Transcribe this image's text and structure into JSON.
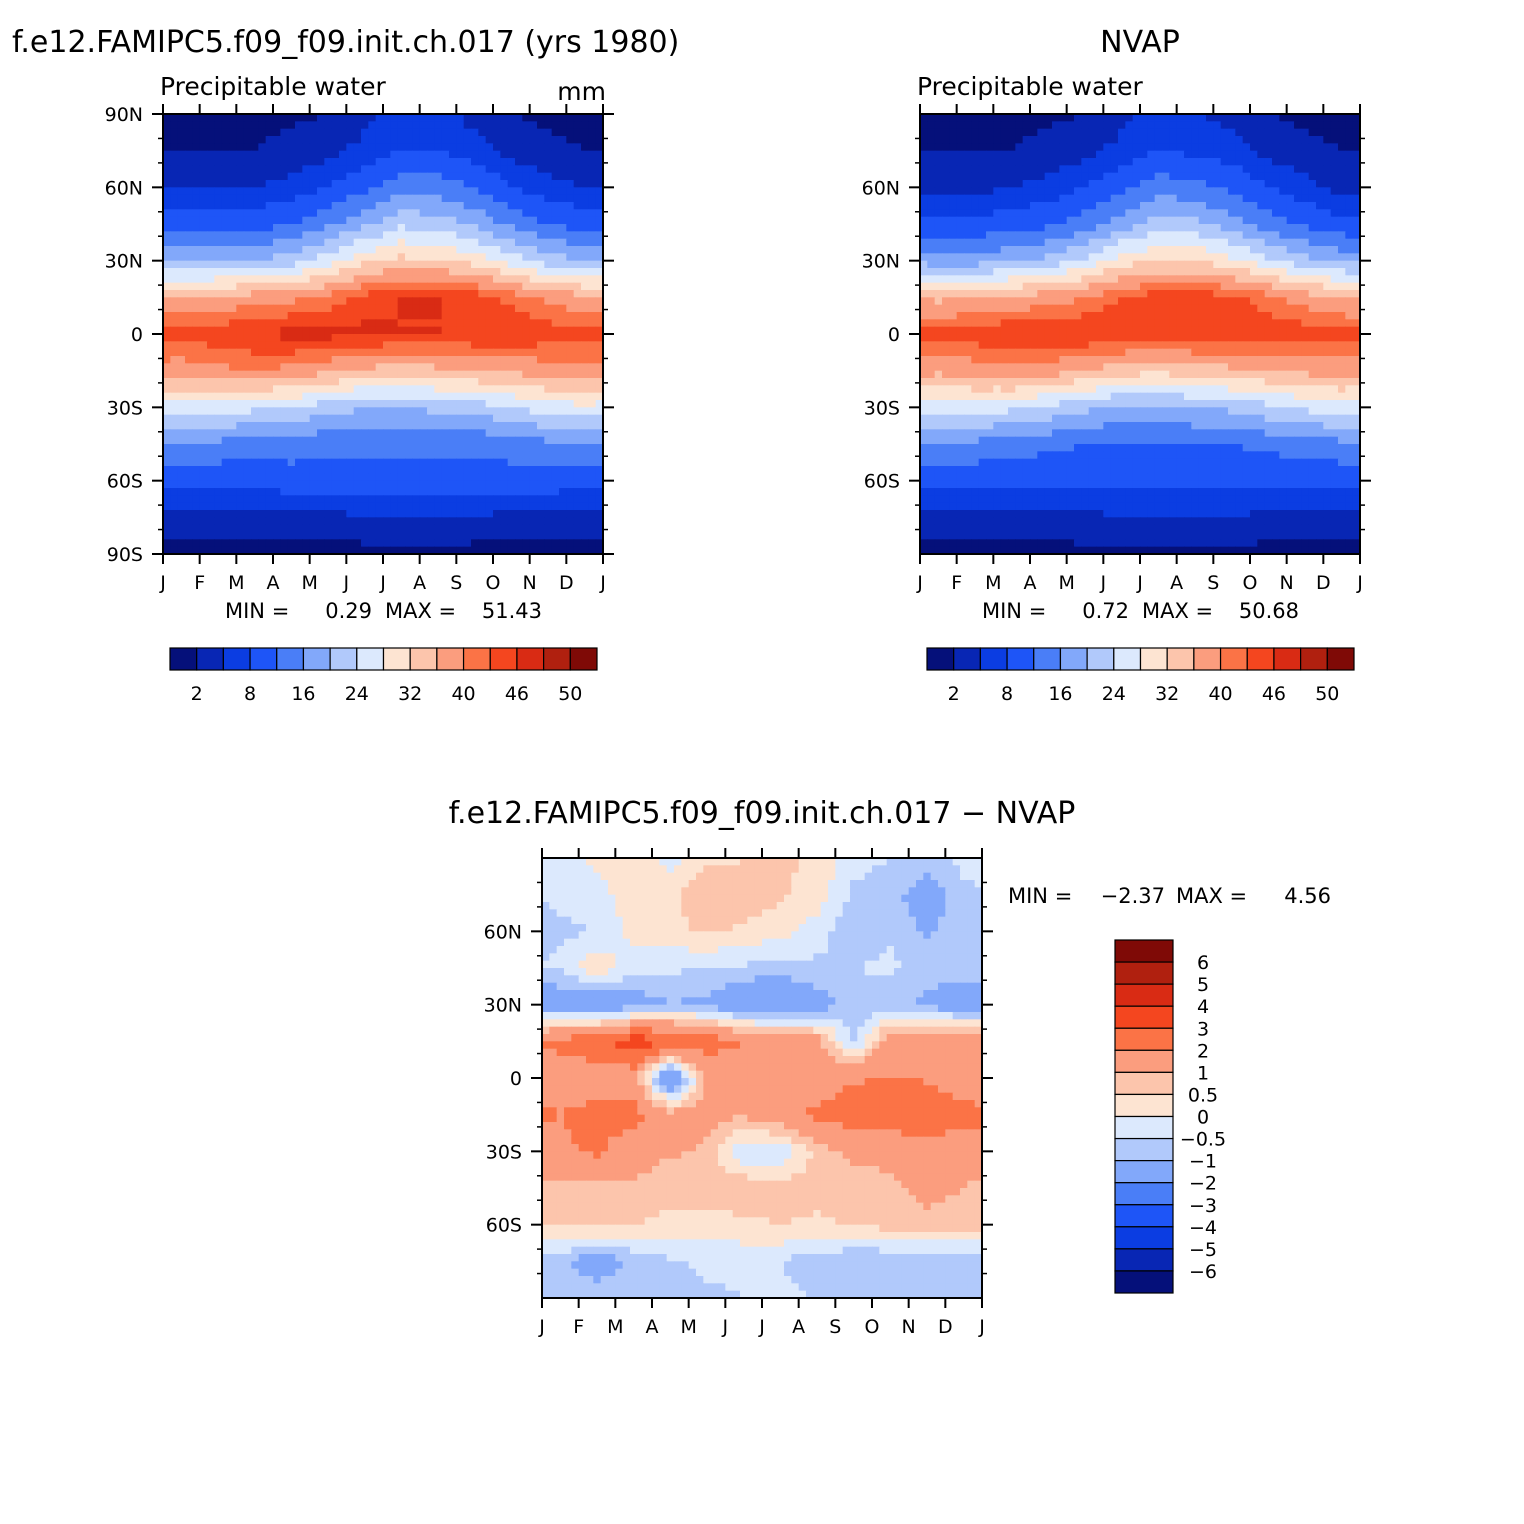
{
  "chart_data": [
    {
      "type": "heatmap",
      "title": "f.e12.FAMIPC5.f09_f09.init.ch.017 (yrs 1980)",
      "subtitle": "Precipitable water",
      "units": "mm",
      "x_tick_labels": [
        "J",
        "F",
        "M",
        "A",
        "M",
        "J",
        "J",
        "A",
        "S",
        "O",
        "N",
        "D",
        "J"
      ],
      "y_tick_labels": [
        "90N",
        "60N",
        "30N",
        "0",
        "30S",
        "60S",
        "90S"
      ],
      "ylim": [
        -90,
        90
      ],
      "stats": {
        "min_label": "MIN =",
        "min": "0.29",
        "max_label": "MAX =",
        "max": "51.43"
      },
      "colorbar_labels": [
        "2",
        "8",
        "16",
        "24",
        "32",
        "40",
        "46",
        "50"
      ],
      "months": [
        1,
        2,
        3,
        4,
        5,
        6,
        7,
        8,
        9,
        10,
        11,
        12
      ],
      "lat": [
        -90,
        -75,
        -60,
        -45,
        -30,
        -15,
        0,
        15,
        30,
        45,
        60,
        75,
        90
      ],
      "values": [
        [
          0.5,
          0.5,
          0.6,
          0.6,
          0.7,
          0.8,
          0.8,
          0.8,
          0.7,
          0.6,
          0.5,
          0.5
        ],
        [
          4,
          4,
          4,
          4,
          4,
          5,
          5,
          5,
          5,
          4,
          4,
          4
        ],
        [
          9,
          9,
          9,
          10,
          10,
          10,
          10,
          10,
          10,
          10,
          10,
          9
        ],
        [
          15,
          15,
          14,
          14,
          13,
          13,
          13,
          13,
          13,
          14,
          15,
          15
        ],
        [
          26,
          26,
          25,
          24,
          22,
          20,
          20,
          21,
          22,
          24,
          26,
          27
        ],
        [
          38,
          39,
          40,
          39,
          37,
          35,
          34,
          35,
          36,
          37,
          38,
          39
        ],
        [
          44,
          45,
          46,
          47,
          47,
          47,
          46,
          46,
          46,
          46,
          45,
          44
        ],
        [
          36,
          37,
          38,
          39,
          41,
          44,
          46,
          46,
          45,
          42,
          39,
          37
        ],
        [
          19,
          19,
          20,
          22,
          26,
          31,
          33,
          33,
          30,
          26,
          22,
          20
        ],
        [
          10,
          10,
          10,
          12,
          15,
          19,
          23,
          22,
          19,
          15,
          12,
          10
        ],
        [
          5,
          5,
          5,
          6,
          8,
          11,
          14,
          14,
          12,
          8,
          6,
          5
        ],
        [
          2,
          2,
          2,
          3,
          4,
          6,
          8,
          8,
          6,
          4,
          3,
          2
        ],
        [
          1,
          1,
          1,
          1.5,
          2,
          4,
          6,
          6,
          4,
          2,
          1,
          1
        ]
      ]
    },
    {
      "type": "heatmap",
      "title": "NVAP",
      "subtitle": "Precipitable water",
      "x_tick_labels": [
        "J",
        "F",
        "M",
        "A",
        "M",
        "J",
        "J",
        "A",
        "S",
        "O",
        "N",
        "D",
        "J"
      ],
      "y_tick_labels": [
        "60N",
        "30N",
        "0",
        "30S",
        "60S"
      ],
      "ylim": [
        -90,
        90
      ],
      "stats": {
        "min_label": "MIN =",
        "min": "0.72",
        "max_label": "MAX =",
        "max": "50.68"
      },
      "colorbar_labels": [
        "2",
        "8",
        "16",
        "24",
        "32",
        "40",
        "46",
        "50"
      ],
      "months": [
        1,
        2,
        3,
        4,
        5,
        6,
        7,
        8,
        9,
        10,
        11,
        12
      ],
      "lat": [
        -90,
        -75,
        -60,
        -45,
        -30,
        -15,
        0,
        15,
        30,
        45,
        60,
        75,
        90
      ],
      "values": [
        [
          1,
          1,
          1,
          1,
          1.2,
          1.5,
          1.5,
          1.5,
          1.2,
          1,
          1,
          1
        ],
        [
          4,
          4,
          4,
          4,
          4,
          5,
          5,
          5,
          5,
          4,
          4,
          4
        ],
        [
          9,
          9,
          9,
          9,
          9,
          9,
          9,
          9,
          9,
          9,
          9,
          9
        ],
        [
          15,
          15,
          14,
          13,
          12,
          12,
          12,
          12,
          12,
          13,
          14,
          15
        ],
        [
          25,
          26,
          25,
          23,
          21,
          19,
          19,
          20,
          21,
          23,
          25,
          26
        ],
        [
          37,
          38,
          39,
          38,
          36,
          34,
          33,
          34,
          35,
          36,
          37,
          38
        ],
        [
          44,
          45,
          46,
          46,
          46,
          46,
          46,
          46,
          46,
          45,
          45,
          44
        ],
        [
          35,
          36,
          37,
          38,
          40,
          43,
          45,
          45,
          44,
          41,
          38,
          36
        ],
        [
          18,
          18,
          19,
          21,
          25,
          30,
          32,
          32,
          29,
          25,
          21,
          19
        ],
        [
          9,
          9,
          10,
          11,
          14,
          18,
          22,
          21,
          18,
          14,
          11,
          9
        ],
        [
          4,
          4,
          5,
          6,
          8,
          11,
          14,
          13,
          11,
          8,
          6,
          4
        ],
        [
          2,
          2,
          2,
          3,
          4,
          6,
          8,
          7,
          6,
          4,
          3,
          2
        ],
        [
          1,
          1,
          1,
          1.5,
          2,
          4,
          6,
          5,
          4,
          2,
          1,
          1
        ]
      ]
    },
    {
      "type": "heatmap",
      "title": "f.e12.FAMIPC5.f09_f09.init.ch.017 − NVAP",
      "x_tick_labels": [
        "J",
        "F",
        "M",
        "A",
        "M",
        "J",
        "J",
        "A",
        "S",
        "O",
        "N",
        "D",
        "J"
      ],
      "y_tick_labels": [
        "60N",
        "30N",
        "0",
        "30S",
        "60S"
      ],
      "ylim": [
        -90,
        90
      ],
      "stats": {
        "min_label": "MIN =",
        "min": "−2.37",
        "max_label": "MAX =",
        "max": "4.56"
      },
      "colorbar_labels": [
        "6",
        "5",
        "4",
        "3",
        "2",
        "1",
        "0.5",
        "0",
        "−0.5",
        "−1",
        "−2",
        "−3",
        "−4",
        "−5",
        "−6"
      ],
      "months": [
        1,
        2,
        3,
        4,
        5,
        6,
        7,
        8,
        9,
        10,
        11,
        12
      ],
      "lat": [
        -90,
        -75,
        -60,
        -45,
        -30,
        -15,
        0,
        15,
        30,
        45,
        60,
        75,
        90
      ],
      "values": [
        [
          -0.5,
          -0.6,
          -0.7,
          -0.7,
          -0.6,
          -0.5,
          -0.4,
          -0.5,
          -0.6,
          -0.7,
          -0.6,
          -0.5
        ],
        [
          -0.8,
          -1.5,
          -0.9,
          -0.6,
          -0.4,
          -0.4,
          -0.5,
          -0.8,
          -1.0,
          -1.0,
          -1.0,
          -0.8
        ],
        [
          0.6,
          0.7,
          0.5,
          0.4,
          0.3,
          0.4,
          0.5,
          0.4,
          0.6,
          0.7,
          0.8,
          0.7
        ],
        [
          0.7,
          0.8,
          0.9,
          0.6,
          0.7,
          0.9,
          0.8,
          0.7,
          0.6,
          0.8,
          1.2,
          1.0
        ],
        [
          1.8,
          2.2,
          1.3,
          1.1,
          0.9,
          -0.4,
          -0.5,
          0.7,
          1.2,
          1.3,
          1.5,
          1.3
        ],
        [
          2.0,
          2.4,
          2.3,
          1.3,
          1.2,
          1.1,
          1.6,
          2.2,
          2.5,
          2.6,
          2.8,
          2.4
        ],
        [
          1.5,
          1.3,
          1.4,
          -2.2,
          1.2,
          1.3,
          1.1,
          1.5,
          1.9,
          2.0,
          1.9,
          1.4
        ],
        [
          2.3,
          2.8,
          3.6,
          3.1,
          2.5,
          2.0,
          1.7,
          1.3,
          -0.7,
          1.5,
          1.7,
          1.8
        ],
        [
          -1.6,
          -1.8,
          -1.4,
          -1.0,
          -1.2,
          -1.8,
          -2.0,
          -1.4,
          -0.8,
          -0.8,
          -1.2,
          -1.6
        ],
        [
          -0.4,
          0.4,
          -0.3,
          -0.4,
          -0.5,
          -0.6,
          -0.7,
          -0.6,
          -0.5,
          -0.4,
          -0.7,
          -0.6
        ],
        [
          -0.6,
          -0.5,
          0.2,
          0.3,
          0.6,
          0.4,
          0.2,
          -0.3,
          -0.9,
          -0.6,
          -1.1,
          -0.7
        ],
        [
          -0.4,
          -0.3,
          0.4,
          0.3,
          1.0,
          0.8,
          0.6,
          0.3,
          -0.6,
          -0.8,
          -1.4,
          -0.6
        ],
        [
          -0.3,
          0.2,
          0.4,
          -0.2,
          0.3,
          0.5,
          0.6,
          0.4,
          -0.3,
          -0.5,
          -0.7,
          -0.4
        ]
      ]
    }
  ],
  "colors": {
    "absolute_palette": [
      "#05107a",
      "#0826b4",
      "#0b3de2",
      "#1e55f7",
      "#4a7ef7",
      "#82a8fa",
      "#b1c9fb",
      "#dce9fd",
      "#fde4d2",
      "#fcc5ac",
      "#fb9d7e",
      "#fb7346",
      "#f4461f",
      "#d92b14",
      "#b0200f",
      "#7f0a06"
    ],
    "diff_palette": [
      "#05107a",
      "#0826b4",
      "#0b3de2",
      "#1e55f7",
      "#4a7ef7",
      "#82a8fa",
      "#b1c9fb",
      "#dce9fd",
      "#fde4d2",
      "#fcc5ac",
      "#fb9d7e",
      "#fb7346",
      "#f4461f",
      "#d92b14",
      "#b0200f",
      "#7f0a06"
    ]
  }
}
